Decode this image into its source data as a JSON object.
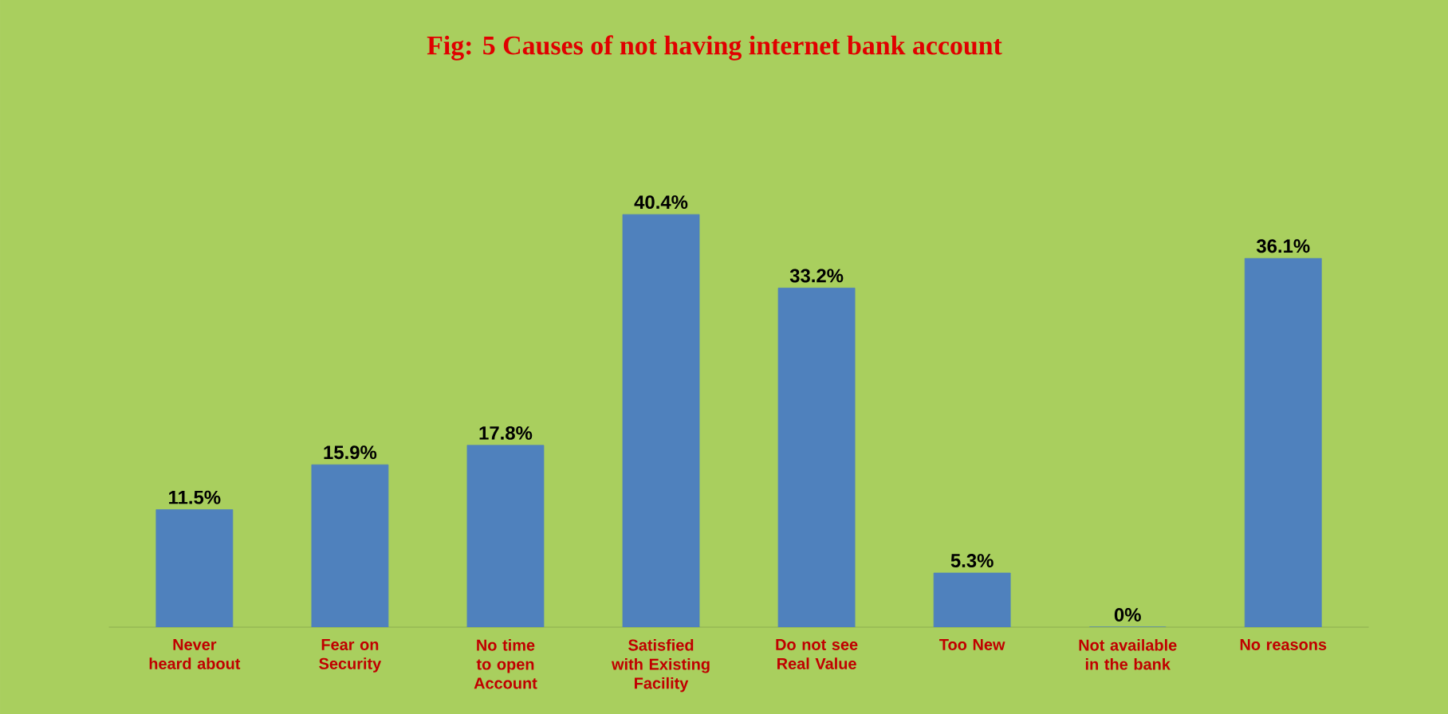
{
  "chart_data": {
    "type": "bar",
    "title": "Fig: 5 Causes of not having internet bank account",
    "categories": [
      "Never heard about",
      "Fear on Security",
      "No time to open Account",
      "Satisfied with Existing Facility",
      "Do not see Real Value",
      "Too New",
      "Not available in the bank",
      "No reasons"
    ],
    "values": [
      11.5,
      15.9,
      17.8,
      40.4,
      33.2,
      5.3,
      0,
      36.1
    ],
    "value_labels": [
      "11.5%",
      "15.9%",
      "17.8%",
      "40.4%",
      "33.2%",
      "5.3%",
      "0%",
      "36.1%"
    ],
    "color": "#4f81bd"
  }
}
